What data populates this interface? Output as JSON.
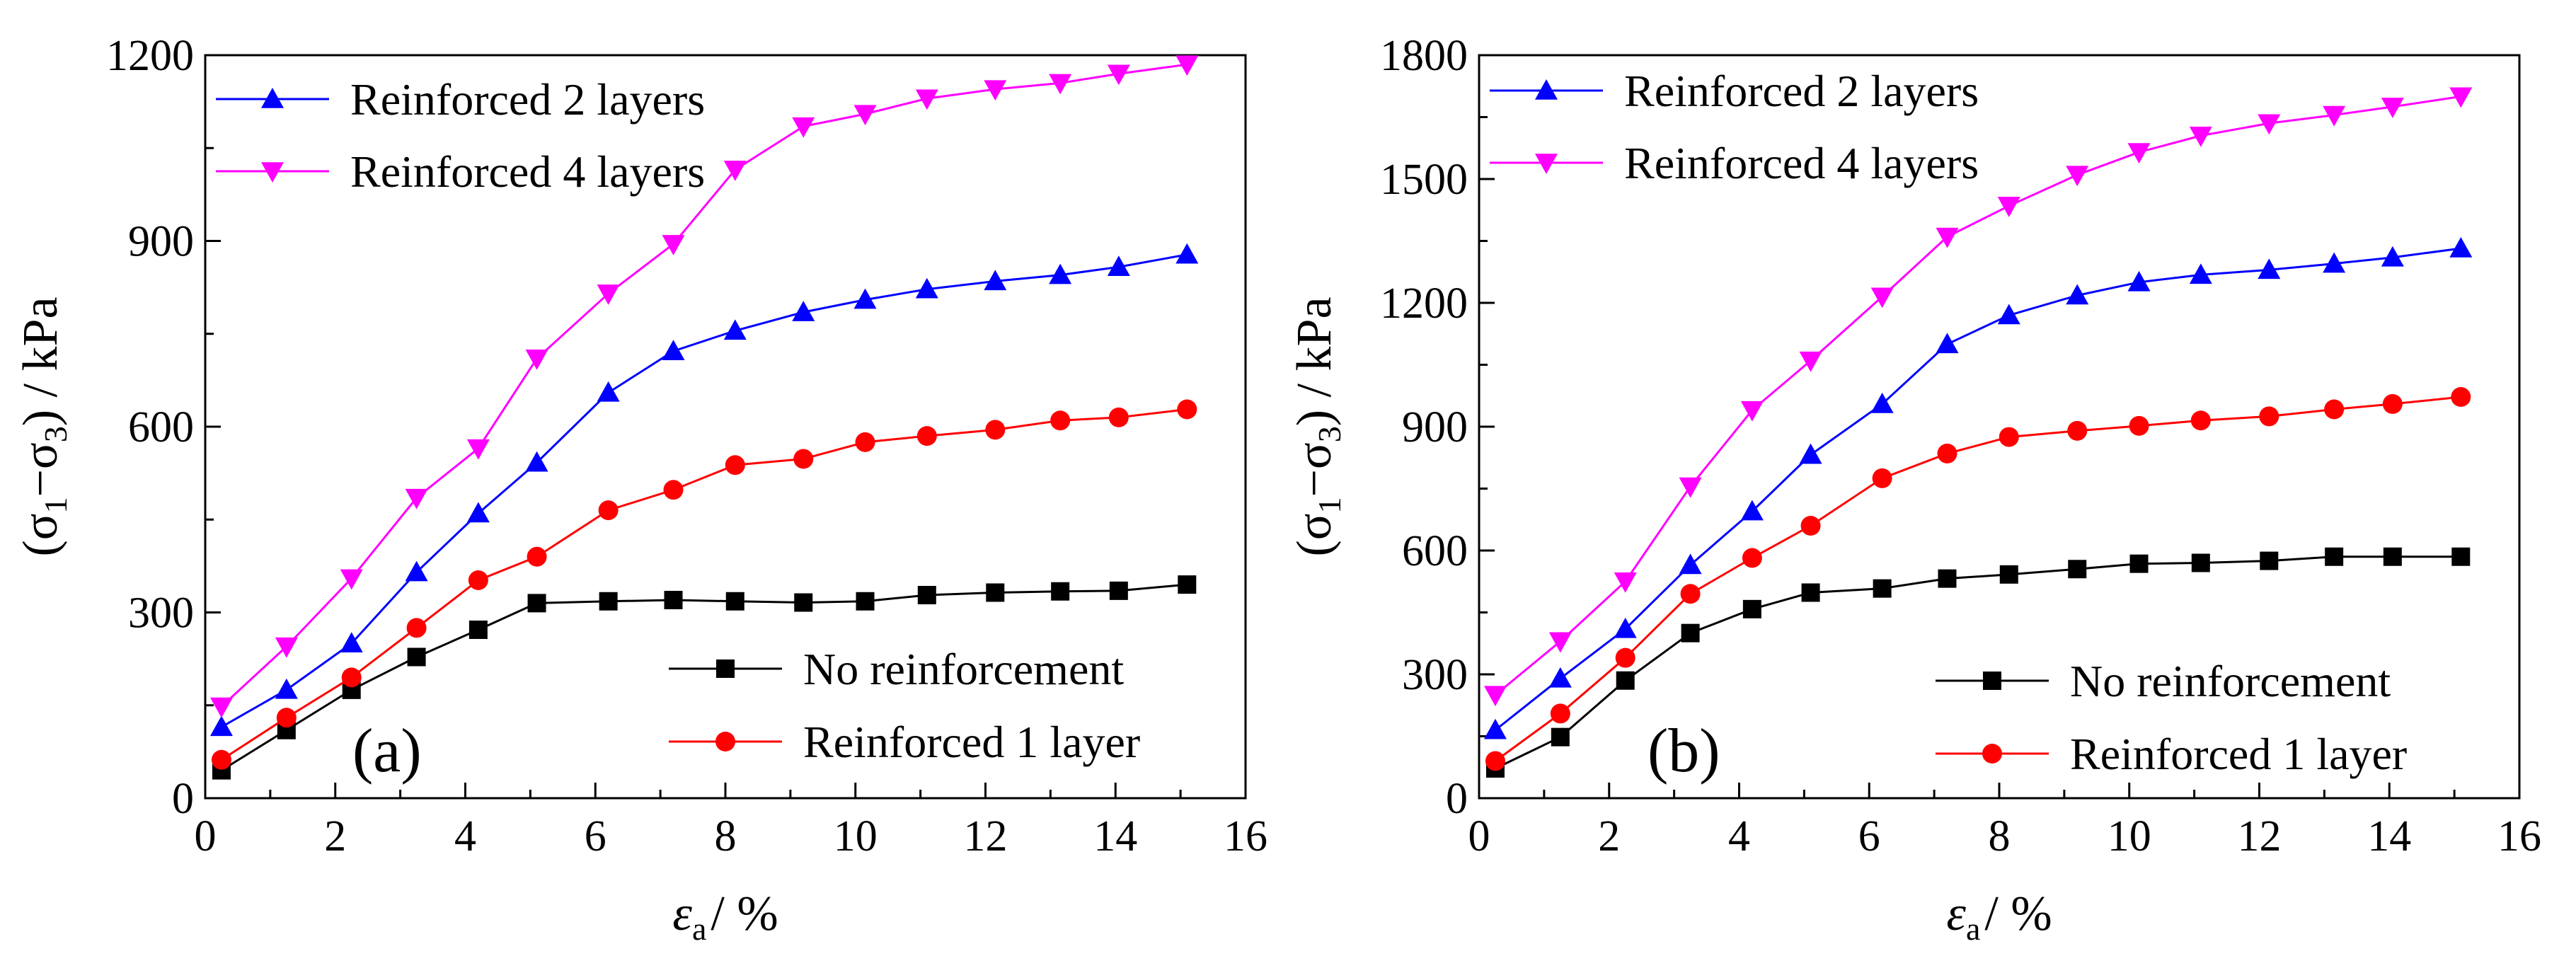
{
  "chart_data": [
    {
      "type": "line",
      "panel_label": "(a)",
      "x": [
        0.25,
        1.25,
        2.25,
        3.25,
        4.2,
        5.1,
        6.2,
        7.2,
        8.15,
        9.2,
        10.15,
        11.1,
        12.15,
        13.15,
        14.05,
        15.1
      ],
      "xlim": [
        0,
        16
      ],
      "ylim": [
        0,
        1200
      ],
      "xticks": [
        "0",
        "2",
        "4",
        "6",
        "8",
        "10",
        "12",
        "14",
        "16"
      ],
      "yticks": [
        "0",
        "300",
        "600",
        "900",
        "1200"
      ],
      "xlabel_symbol": "ε",
      "xlabel_sub": "a",
      "xlabel_unit": "/ %",
      "ylabel_open": "(σ",
      "ylabel_sub1": "1",
      "ylabel_mid": "−σ",
      "ylabel_sub3": "3",
      "ylabel_close": ") / kPa",
      "series": [
        {
          "name": "No reinforcement",
          "color": "#000000",
          "marker": "square",
          "legend_group": "bottom",
          "values": [
            45,
            110,
            175,
            228,
            272,
            315,
            318,
            320,
            318,
            316,
            318,
            328,
            332,
            334,
            335,
            345
          ]
        },
        {
          "name": "Reinforced 1 layer",
          "color": "#ff0000",
          "marker": "circle",
          "legend_group": "bottom",
          "values": [
            62,
            130,
            195,
            275,
            352,
            390,
            465,
            498,
            538,
            548,
            575,
            585,
            595,
            610,
            615,
            628
          ]
        },
        {
          "name": "Reinforced 2 layers",
          "color": "#0000ff",
          "marker": "triangle-up",
          "legend_group": "top",
          "values": [
            115,
            175,
            250,
            365,
            460,
            542,
            655,
            722,
            755,
            785,
            805,
            822,
            835,
            845,
            858,
            878
          ]
        },
        {
          "name": "Reinforced 4 layers",
          "color": "#ff00ff",
          "marker": "triangle-down",
          "legend_group": "top",
          "values": [
            148,
            245,
            355,
            485,
            565,
            710,
            815,
            895,
            1015,
            1085,
            1105,
            1130,
            1145,
            1155,
            1170,
            1185
          ]
        }
      ]
    },
    {
      "type": "line",
      "panel_label": "(b)",
      "x": [
        0.25,
        1.25,
        2.25,
        3.25,
        4.2,
        5.1,
        6.2,
        7.2,
        8.15,
        9.2,
        10.15,
        11.1,
        12.15,
        13.15,
        14.05,
        15.1
      ],
      "xlim": [
        0,
        16
      ],
      "ylim": [
        0,
        1800
      ],
      "xticks": [
        "0",
        "2",
        "4",
        "6",
        "8",
        "10",
        "12",
        "14",
        "16"
      ],
      "yticks": [
        "0",
        "300",
        "600",
        "900",
        "1200",
        "1500",
        "1800"
      ],
      "xlabel_symbol": "ε",
      "xlabel_sub": "a",
      "xlabel_unit": "/ %",
      "ylabel_open": "(σ",
      "ylabel_sub1": "1",
      "ylabel_mid": "−σ",
      "ylabel_sub3": "3",
      "ylabel_close": ") / kPa",
      "series": [
        {
          "name": "No reinforcement",
          "color": "#000000",
          "marker": "square",
          "legend_group": "bottom",
          "values": [
            72,
            148,
            285,
            400,
            458,
            498,
            508,
            532,
            542,
            555,
            568,
            570,
            575,
            585,
            585,
            585
          ]
        },
        {
          "name": "Reinforced 1 layer",
          "color": "#ff0000",
          "marker": "circle",
          "legend_group": "bottom",
          "values": [
            90,
            205,
            340,
            495,
            582,
            660,
            775,
            835,
            875,
            890,
            902,
            915,
            925,
            942,
            955,
            972
          ]
        },
        {
          "name": "Reinforced 2 layers",
          "color": "#0000ff",
          "marker": "triangle-up",
          "legend_group": "top",
          "values": [
            165,
            290,
            410,
            565,
            695,
            832,
            955,
            1100,
            1170,
            1218,
            1250,
            1268,
            1280,
            1295,
            1310,
            1332
          ]
        },
        {
          "name": "Reinforced 4 layers",
          "color": "#ff00ff",
          "marker": "triangle-down",
          "legend_group": "top",
          "values": [
            250,
            380,
            525,
            755,
            940,
            1060,
            1215,
            1360,
            1435,
            1510,
            1565,
            1605,
            1635,
            1655,
            1675,
            1700
          ]
        }
      ]
    }
  ]
}
